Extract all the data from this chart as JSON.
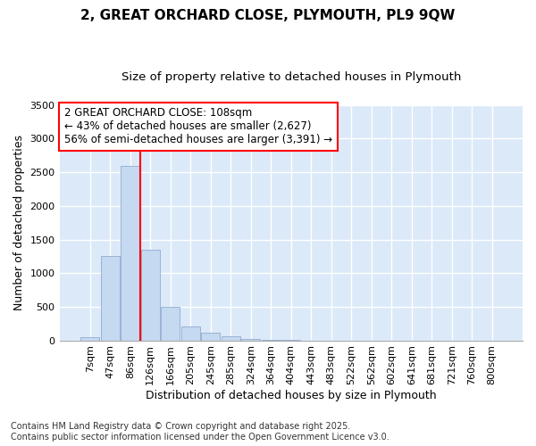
{
  "title_line1": "2, GREAT ORCHARD CLOSE, PLYMOUTH, PL9 9QW",
  "title_line2": "Size of property relative to detached houses in Plymouth",
  "xlabel": "Distribution of detached houses by size in Plymouth",
  "ylabel": "Number of detached properties",
  "categories": [
    "7sqm",
    "47sqm",
    "86sqm",
    "126sqm",
    "166sqm",
    "205sqm",
    "245sqm",
    "285sqm",
    "324sqm",
    "364sqm",
    "404sqm",
    "443sqm",
    "483sqm",
    "522sqm",
    "562sqm",
    "602sqm",
    "641sqm",
    "681sqm",
    "721sqm",
    "760sqm",
    "800sqm"
  ],
  "bar_values": [
    50,
    1250,
    2600,
    1350,
    500,
    210,
    120,
    55,
    20,
    5,
    3,
    1,
    0,
    0,
    0,
    0,
    0,
    0,
    0,
    0,
    0
  ],
  "bar_color": "#c5d9f1",
  "bar_edge_color": "#9ab3d5",
  "background_color": "#dce9f8",
  "grid_color": "#ffffff",
  "vline_color": "red",
  "vline_x_index": 2.5,
  "annotation_text_line1": "2 GREAT ORCHARD CLOSE: 108sqm",
  "annotation_text_line2": "← 43% of detached houses are smaller (2,627)",
  "annotation_text_line3": "56% of semi-detached houses are larger (3,391) →",
  "ylim": [
    0,
    3500
  ],
  "yticks": [
    0,
    500,
    1000,
    1500,
    2000,
    2500,
    3000,
    3500
  ],
  "footnote_line1": "Contains HM Land Registry data © Crown copyright and database right 2025.",
  "footnote_line2": "Contains public sector information licensed under the Open Government Licence v3.0.",
  "title_fontsize": 11,
  "subtitle_fontsize": 9.5,
  "annotation_fontsize": 8.5,
  "tick_fontsize": 8,
  "ylabel_fontsize": 9,
  "xlabel_fontsize": 9,
  "footnote_fontsize": 7
}
